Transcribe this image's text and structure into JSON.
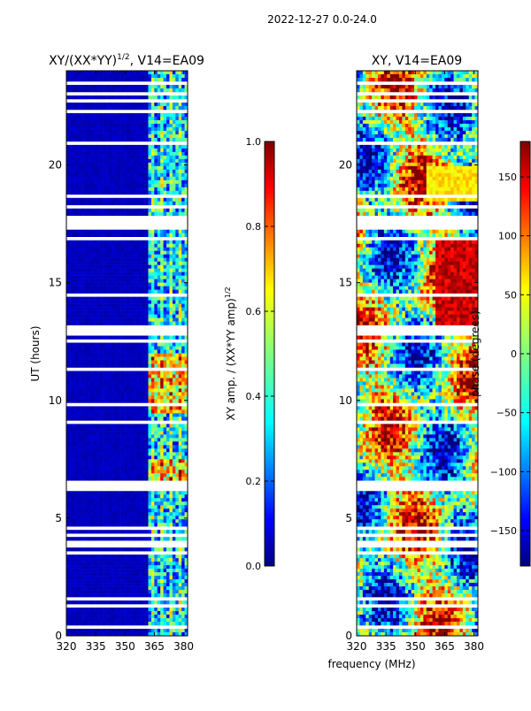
{
  "suptitle": "2022-12-27 0.0-24.0",
  "shared_xlabel": "frequency (MHz)",
  "chart_data": [
    {
      "type": "heatmap",
      "id": "amp",
      "title": "XY/(XX*YY)1/2, V14=EA09",
      "title_main": "XY/(XX*YY)",
      "title_sup": "1/2",
      "title_tail": ", V14=EA09",
      "ylabel": "UT (hours)",
      "xlim": [
        320,
        382
      ],
      "ylim": [
        0,
        24
      ],
      "xticks": [
        320,
        335,
        350,
        365,
        380
      ],
      "yticks": [
        0,
        5,
        10,
        15,
        20
      ],
      "colorbar": {
        "label": "XY amp. / (XX*YY amp)1/2",
        "label_main": "XY amp. / (XX*YY amp)",
        "label_sup": "1/2",
        "range": [
          0.0,
          1.0
        ],
        "ticks": [
          "0.0",
          "0.2",
          "0.4",
          "0.6",
          "0.8",
          "1.0"
        ],
        "colormap": "jet"
      },
      "description_values": {
        "background": 0.05,
        "band_start_mhz": 362,
        "band_end_mhz": 381
      }
    },
    {
      "type": "heatmap",
      "id": "phase",
      "title": "XY, V14=EA09",
      "ylabel": "",
      "xlim": [
        320,
        382
      ],
      "ylim": [
        0,
        24
      ],
      "xticks": [
        320,
        335,
        350,
        365,
        380
      ],
      "yticks": [
        0,
        5,
        10,
        15,
        20
      ],
      "colorbar": {
        "label": "phase (degrees)",
        "range": [
          -180,
          180
        ],
        "ticks": [
          "-150",
          "-100",
          "-50",
          "0",
          "50",
          "100",
          "150"
        ],
        "colormap": "jet"
      }
    }
  ],
  "colors": {
    "jet": [
      "#000080",
      "#0000ff",
      "#0080ff",
      "#00ffff",
      "#80ff80",
      "#ffff00",
      "#ff8000",
      "#ff0000",
      "#800000"
    ]
  }
}
